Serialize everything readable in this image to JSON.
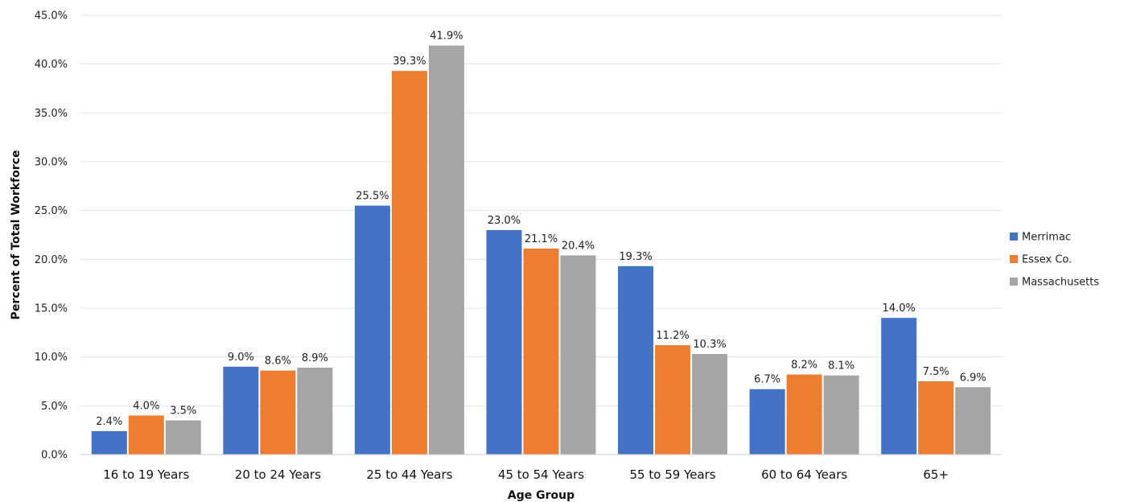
{
  "chart_data": {
    "type": "bar",
    "title": "",
    "xlabel": "Age Group",
    "ylabel": "Percent of Total Workforce",
    "ylim": [
      0,
      45
    ],
    "ytick_step": 5,
    "ytick_format": "percent_1dp",
    "grid": true,
    "legend_position": "right",
    "categories": [
      "16 to 19 Years",
      "20 to 24 Years",
      "25 to 44 Years",
      "45 to 54 Years",
      "55 to 59 Years",
      "60 to 64 Years",
      "65+"
    ],
    "series": [
      {
        "name": "Merrimac",
        "color": "#4472C4",
        "values": [
          2.4,
          9.0,
          25.5,
          23.0,
          19.3,
          6.7,
          14.0
        ]
      },
      {
        "name": "Essex Co.",
        "color": "#ED7D31",
        "values": [
          4.0,
          8.6,
          39.3,
          21.1,
          11.2,
          8.2,
          7.5
        ]
      },
      {
        "name": "Massachusetts",
        "color": "#A5A5A5",
        "values": [
          3.5,
          8.9,
          41.9,
          20.4,
          10.3,
          8.1,
          6.9
        ]
      }
    ]
  }
}
